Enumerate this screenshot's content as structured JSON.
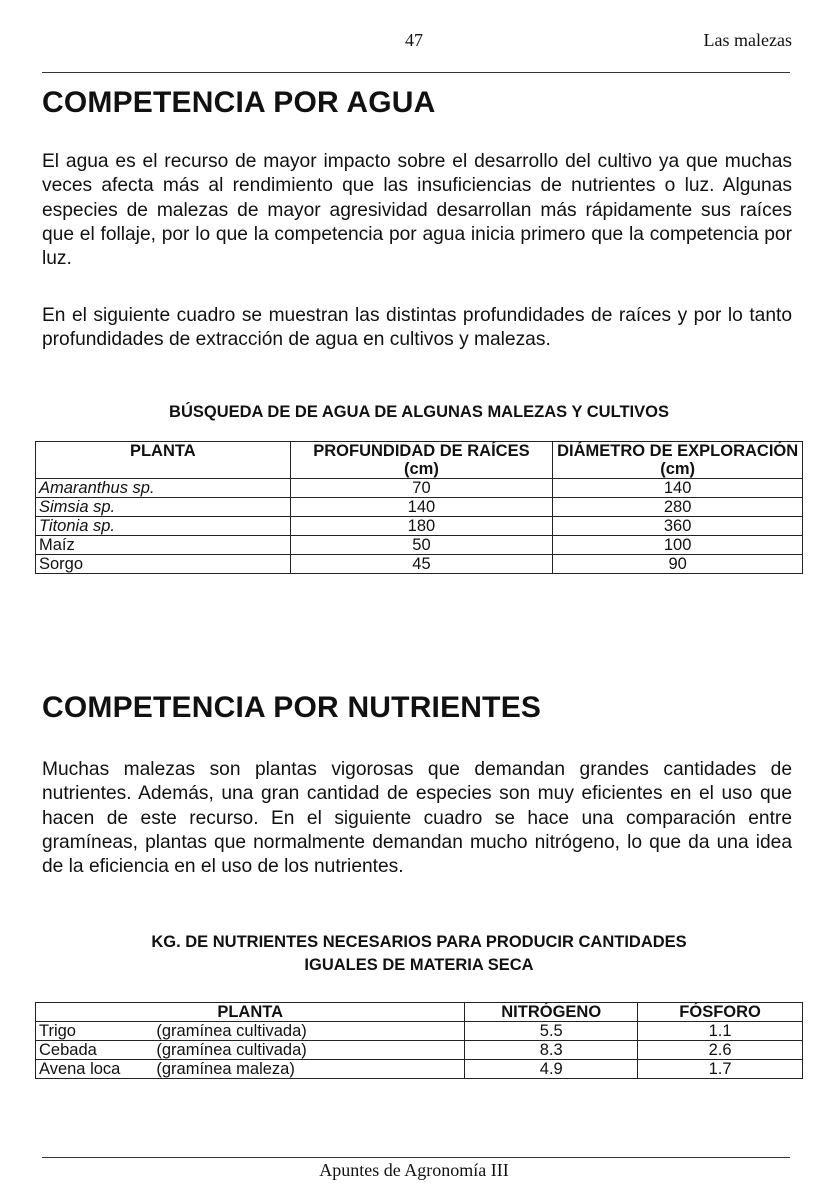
{
  "header": {
    "page_number": "47",
    "chapter": "Las malezas"
  },
  "section1": {
    "title": "COMPETENCIA POR AGUA",
    "paragraphs": [
      "El agua es el recurso de mayor impacto sobre el desarrollo del cultivo ya que muchas veces afecta más al rendimiento que las insuficiencias de nutrientes o luz. Algunas especies de malezas de mayor agresividad desarrollan más rápidamente sus raíces que el follaje, por lo que la competencia por agua inicia primero que la competencia por luz.",
      "En el siguiente cuadro se muestran las distintas profundidades de raíces y por lo tanto profundidades de extracción de agua en cultivos y malezas."
    ],
    "table": {
      "title": "BÚSQUEDA DE DE AGUA DE ALGUNAS MALEZAS Y CULTIVOS",
      "headers": [
        "PLANTA",
        "PROFUNDIDAD DE RAÍCES (cm)",
        "DIÁMETRO DE EXPLORACIÓN (cm)"
      ],
      "rows": [
        {
          "planta": "Amaranthus sp.",
          "italic": true,
          "profundidad": "70",
          "diametro": "140"
        },
        {
          "planta": "Simsia sp.",
          "italic": true,
          "profundidad": "140",
          "diametro": "280"
        },
        {
          "planta": "Titonia sp.",
          "italic": true,
          "profundidad": "180",
          "diametro": "360"
        },
        {
          "planta": "Maíz",
          "italic": false,
          "profundidad": "50",
          "diametro": "100"
        },
        {
          "planta": "Sorgo",
          "italic": false,
          "profundidad": "45",
          "diametro": "90"
        }
      ]
    }
  },
  "section2": {
    "title": "COMPETENCIA POR NUTRIENTES",
    "paragraph": "Muchas malezas son plantas vigorosas que demandan grandes cantidades de nutrientes. Además, una gran cantidad de especies son muy eficientes en el uso que hacen de este recurso. En el siguiente cuadro se hace una comparación entre gramíneas, plantas que normalmente demandan mucho nitrógeno, lo que da una idea de la eficiencia en el uso de los nutrientes.",
    "table": {
      "title_line1": "KG. DE NUTRIENTES NECESARIOS PARA PRODUCIR CANTIDADES",
      "title_line2": "IGUALES DE MATERIA SECA",
      "headers": [
        "PLANTA",
        "NITRÓGENO",
        "FÓSFORO"
      ],
      "rows": [
        {
          "planta": "Trigo",
          "tipo": "(gramínea cultivada)",
          "nitrogeno": "5.5",
          "fosforo": "1.1"
        },
        {
          "planta": "Cebada",
          "tipo": "(gramínea cultivada)",
          "nitrogeno": "8.3",
          "fosforo": "2.6"
        },
        {
          "planta": "Avena loca",
          "tipo": "(gramínea maleza)",
          "nitrogeno": "4.9",
          "fosforo": "1.7"
        }
      ]
    }
  },
  "footer": {
    "text": "Apuntes de Agronomía III"
  }
}
